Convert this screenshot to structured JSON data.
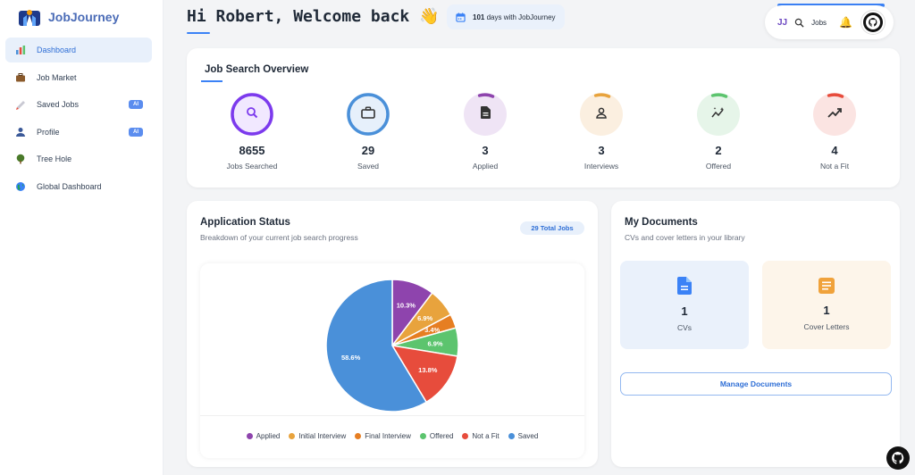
{
  "brand": {
    "name": "JobJourney"
  },
  "sidebar": {
    "items": [
      {
        "label": "Dashboard",
        "icon": "bar-chart-icon",
        "active": true,
        "ai": false
      },
      {
        "label": "Job Market",
        "icon": "briefcase-icon",
        "active": false,
        "ai": false
      },
      {
        "label": "Saved Jobs",
        "icon": "bookmark-icon",
        "active": false,
        "ai": true
      },
      {
        "label": "Profile",
        "icon": "user-icon",
        "active": false,
        "ai": true
      },
      {
        "label": "Tree Hole",
        "icon": "tree-icon",
        "active": false,
        "ai": false
      },
      {
        "label": "Global Dashboard",
        "icon": "globe-icon",
        "active": false,
        "ai": false
      }
    ],
    "ai_badge": "AI"
  },
  "header": {
    "greeting": "Hi Robert, Welcome back 👋",
    "days_count": "101",
    "days_text": "days with JobJourney",
    "initials": "JJ",
    "jobs_label": "Jobs"
  },
  "overview": {
    "title": "Job Search Overview",
    "stats": [
      {
        "value": "8655",
        "label": "Jobs Searched",
        "color": "#7c3aed",
        "bg": "#f1e8ff",
        "icon": "search-icon"
      },
      {
        "value": "29",
        "label": "Saved",
        "color": "#4a90d9",
        "bg": "#e6f0fb",
        "icon": "briefcase-icon"
      },
      {
        "value": "3",
        "label": "Applied",
        "color": "#8e44ad",
        "bg": "#efe4f5",
        "icon": "document-icon"
      },
      {
        "value": "3",
        "label": "Interviews",
        "color": "#e8a33d",
        "bg": "#fbefe0",
        "icon": "interview-icon"
      },
      {
        "value": "2",
        "label": "Offered",
        "color": "#5cc46e",
        "bg": "#e6f5e9",
        "icon": "sparkle-icon"
      },
      {
        "value": "4",
        "label": "Not a Fit",
        "color": "#e74c3c",
        "bg": "#fbe4e2",
        "icon": "trend-icon"
      }
    ]
  },
  "status": {
    "title": "Application Status",
    "subtitle": "Breakdown of your current job search progress",
    "total": "29 Total Jobs"
  },
  "chart_data": {
    "type": "pie",
    "categories": [
      "Applied",
      "Initial Interview",
      "Final Interview",
      "Offered",
      "Not a Fit",
      "Saved"
    ],
    "values": [
      3,
      2,
      1,
      2,
      4,
      17
    ],
    "labels": [
      "10.3%",
      "6.9%",
      "3.4%",
      "6.9%",
      "13.8%",
      "58.6%"
    ],
    "colors": [
      "#8e44ad",
      "#e8a33d",
      "#e67e22",
      "#5cc46e",
      "#e74c3c",
      "#4a90d9"
    ],
    "legend": "bottom"
  },
  "documents": {
    "title": "My Documents",
    "subtitle": "CVs and cover letters in your library",
    "cv": {
      "count": "1",
      "label": "CVs",
      "bg": "#eaf1fb",
      "color": "#3b82f6"
    },
    "cover": {
      "count": "1",
      "label": "Cover Letters",
      "bg": "#fdf5ea",
      "color": "#f0a23b"
    },
    "manage_label": "Manage Documents"
  }
}
